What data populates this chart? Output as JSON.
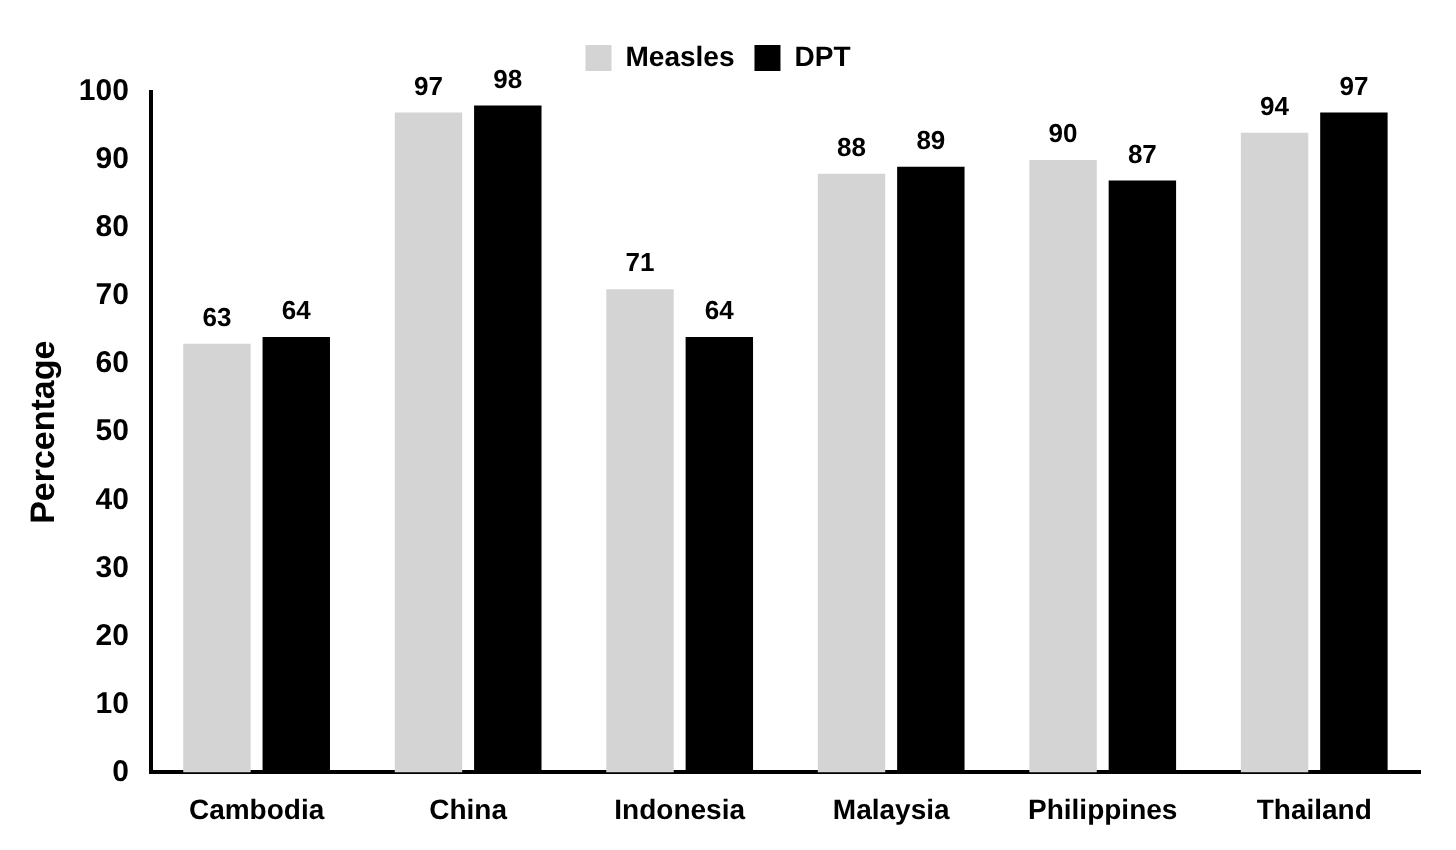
{
  "chart_data": {
    "type": "bar",
    "ylabel": "Percentage",
    "categories": [
      "Cambodia",
      "China",
      "Indonesia",
      "Malaysia",
      "Philippines",
      "Thailand"
    ],
    "series": [
      {
        "name": "Measles",
        "color": "#d4d4d4",
        "values": [
          63,
          97,
          71,
          88,
          90,
          94
        ]
      },
      {
        "name": "DPT",
        "color": "#000000",
        "values": [
          64,
          98,
          64,
          89,
          87,
          97
        ]
      }
    ],
    "ylim": [
      0,
      100
    ],
    "yticks": [
      0,
      10,
      20,
      30,
      40,
      50,
      60,
      70,
      80,
      90,
      100
    ],
    "grid": false,
    "legend": "top",
    "data_labels": true
  }
}
